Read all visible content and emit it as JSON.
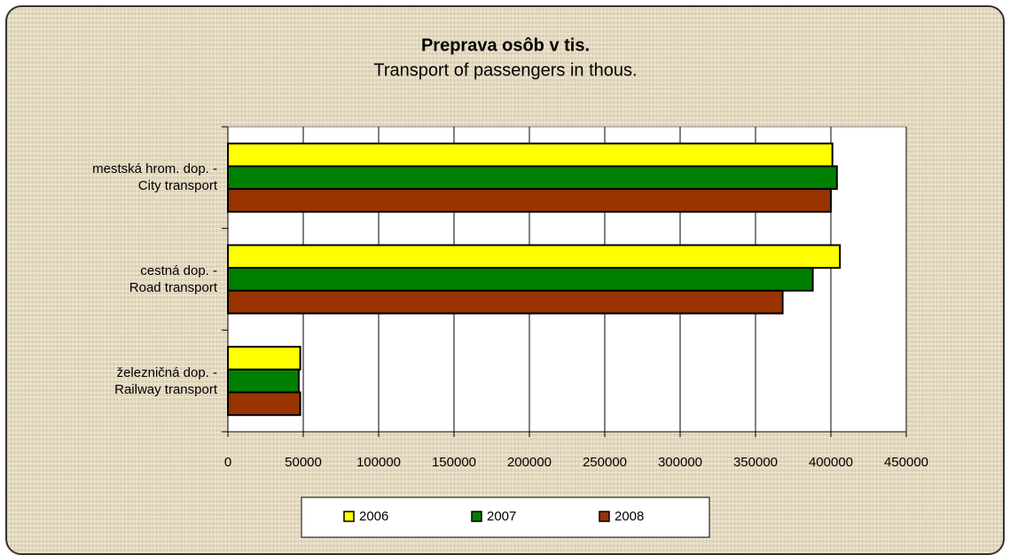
{
  "chart_data": {
    "type": "barh",
    "title": "Preprava osôb v tis.",
    "subtitle": "Transport of passengers in thous.",
    "categories": [
      "mestská hrom. dop. -\nCity transport",
      "cestná dop. -\nRoad transport",
      "železničná dop. -\nRailway transport"
    ],
    "series": [
      {
        "name": "2006",
        "color": "#ffff00",
        "values": [
          401000,
          406000,
          48000
        ]
      },
      {
        "name": "2007",
        "color": "#008000",
        "values": [
          404000,
          388000,
          47000
        ]
      },
      {
        "name": "2008",
        "color": "#993300",
        "values": [
          400000,
          368000,
          48000
        ]
      }
    ],
    "xlim": [
      0,
      450000
    ],
    "xticks": [
      0,
      50000,
      100000,
      150000,
      200000,
      250000,
      300000,
      350000,
      400000,
      450000
    ],
    "grid": true,
    "legend": "bottom"
  }
}
